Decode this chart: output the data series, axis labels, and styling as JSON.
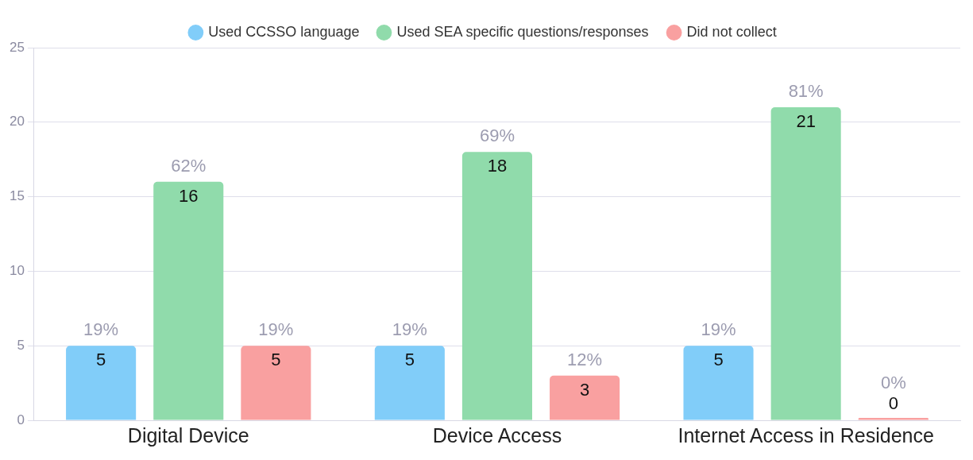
{
  "chart_data": {
    "type": "bar",
    "categories": [
      "Digital Device",
      "Device Access",
      "Internet Access in Residence"
    ],
    "series": [
      {
        "name": "Used CCSSO language",
        "color": "#81cdf9",
        "values": [
          5,
          5,
          5
        ],
        "value_labels": [
          "5",
          "5",
          "5"
        ]
      },
      {
        "name": "Used SEA specific questions/responses",
        "color": "#90dbab",
        "values": [
          16,
          18,
          21
        ],
        "value_labels": [
          "16",
          "18",
          "21"
        ]
      },
      {
        "name": "Did not collect",
        "color": "#f9a0a0",
        "values": [
          5,
          3,
          0
        ],
        "value_labels": [
          "5",
          "3",
          "0"
        ]
      }
    ],
    "annotations": [
      "19%",
      "62%",
      "19%",
      "19%",
      "69%",
      "12%",
      "19%",
      "81%",
      "0%"
    ],
    "ylim": [
      0,
      25
    ],
    "yticks": [
      0,
      5,
      10,
      15,
      20,
      25
    ],
    "grid": "y",
    "legend": "top"
  }
}
